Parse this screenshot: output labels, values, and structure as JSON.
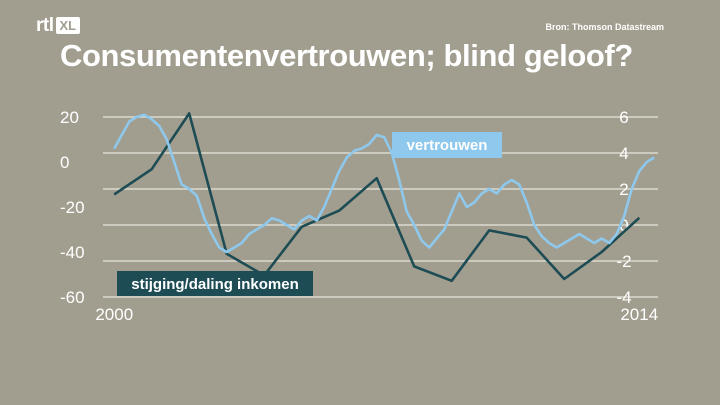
{
  "header": {
    "logo_text": "rtl",
    "logo_badge": "XL",
    "source": "Bron: Thomson Datastream",
    "title": "Consumentenvertrouwen; blind geloof?"
  },
  "colors": {
    "background": "#a19e8f",
    "confidence_line": "#8ec8ec",
    "income_line": "#1e4c55",
    "grid": "#dcdad1",
    "text": "#ffffff"
  },
  "chart_data": {
    "type": "line",
    "title": "Consumentenvertrouwen; blind geloof?",
    "x_ticks": [
      2000,
      2014
    ],
    "xlim": [
      1999.7,
      2014.5
    ],
    "left_axis": {
      "ticks": [
        20,
        0,
        -20,
        -40,
        -60
      ],
      "ylim": [
        -60,
        20
      ]
    },
    "right_axis": {
      "ticks": [
        6,
        4,
        2,
        0,
        -2,
        -4
      ],
      "ylim": [
        -4,
        6
      ]
    },
    "grid": true,
    "series": [
      {
        "name": "vertrouwen",
        "axis": "left",
        "x": [
          2000.0,
          2000.2,
          2000.4,
          2000.6,
          2000.8,
          2001.0,
          2001.2,
          2001.4,
          2001.6,
          2001.8,
          2002.0,
          2002.2,
          2002.4,
          2002.6,
          2002.8,
          2003.0,
          2003.2,
          2003.4,
          2003.6,
          2003.8,
          2004.0,
          2004.2,
          2004.4,
          2004.6,
          2004.8,
          2005.0,
          2005.2,
          2005.4,
          2005.6,
          2005.8,
          2006.0,
          2006.2,
          2006.4,
          2006.6,
          2006.8,
          2007.0,
          2007.2,
          2007.4,
          2007.6,
          2007.8,
          2008.0,
          2008.2,
          2008.4,
          2008.6,
          2008.8,
          2009.0,
          2009.2,
          2009.4,
          2009.6,
          2009.8,
          2010.0,
          2010.2,
          2010.4,
          2010.6,
          2010.8,
          2011.0,
          2011.2,
          2011.4,
          2011.6,
          2011.8,
          2012.0,
          2012.2,
          2012.4,
          2012.6,
          2012.8,
          2013.0,
          2013.2,
          2013.4,
          2013.6,
          2013.8,
          2014.0,
          2014.2,
          2014.4
        ],
        "values": [
          6,
          12,
          18,
          20,
          21,
          19,
          16,
          10,
          0,
          -10,
          -12,
          -15,
          -25,
          -32,
          -38,
          -40,
          -38,
          -36,
          -32,
          -30,
          -28,
          -25,
          -26,
          -28,
          -30,
          -26,
          -24,
          -26,
          -20,
          -12,
          -4,
          2,
          5,
          6,
          8,
          12,
          11,
          4,
          -8,
          -22,
          -28,
          -35,
          -38,
          -34,
          -30,
          -22,
          -14,
          -20,
          -18,
          -14,
          -12,
          -14,
          -10,
          -8,
          -10,
          -18,
          -28,
          -33,
          -36,
          -38,
          -36,
          -34,
          -32,
          -34,
          -36,
          -34,
          -36,
          -32,
          -24,
          -12,
          -4,
          0,
          2
        ]
      },
      {
        "name": "stijging/daling inkomen",
        "axis": "right",
        "x": [
          2000.0,
          2001.0,
          2002.0,
          2003.0,
          2004.0,
          2005.0,
          2006.0,
          2007.0,
          2008.0,
          2009.0,
          2010.0,
          2011.0,
          2012.0,
          2013.0,
          2014.0
        ],
        "values": [
          1.7,
          3.1,
          6.2,
          -1.6,
          -2.8,
          -0.1,
          0.8,
          2.6,
          -2.3,
          -3.1,
          -0.3,
          -0.7,
          -3.0,
          -1.5,
          0.4
        ]
      }
    ],
    "legend": [
      {
        "label": "vertrouwen",
        "placement": "upper-right"
      },
      {
        "label": "stijging/daling inkomen",
        "placement": "lower-left"
      }
    ]
  }
}
